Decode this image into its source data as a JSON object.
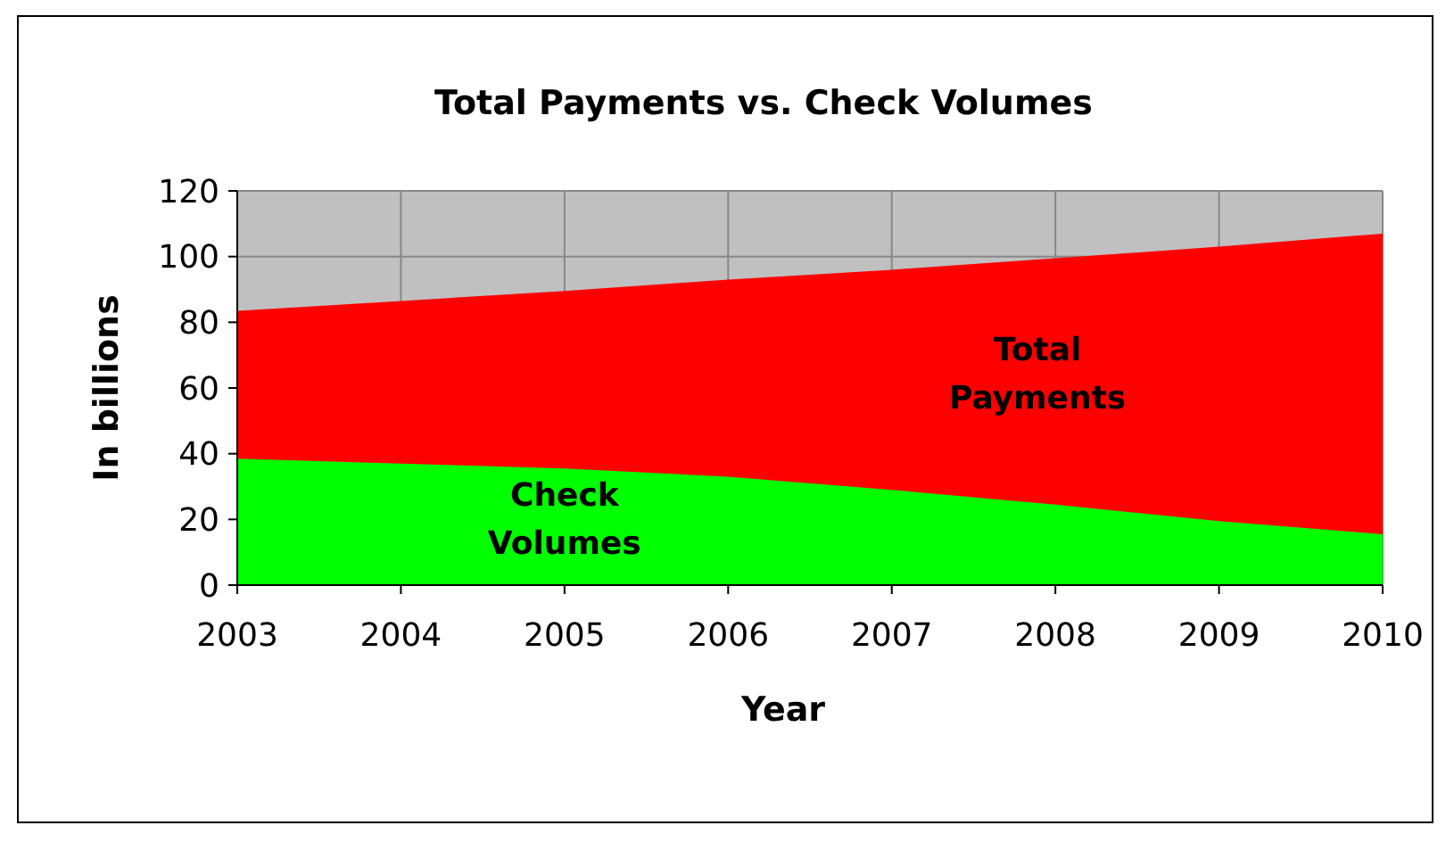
{
  "chart_data": {
    "type": "area",
    "title": "Total Payments vs. Check Volumes",
    "xlabel": "Year",
    "ylabel": "In billions",
    "x": [
      2003,
      2004,
      2005,
      2006,
      2007,
      2008,
      2009,
      2010
    ],
    "xlim": [
      2003,
      2010
    ],
    "xticks": [
      2003,
      2004,
      2005,
      2006,
      2007,
      2008,
      2009,
      2010
    ],
    "ylim": [
      0,
      120
    ],
    "yticks": [
      0,
      20,
      40,
      60,
      80,
      100,
      120
    ],
    "grid": true,
    "series": [
      {
        "name": "Total Payments",
        "color": "#ff0000",
        "values": [
          83.5,
          86.5,
          89.5,
          93,
          96,
          99.5,
          103,
          107
        ]
      },
      {
        "name": "Check Volumes",
        "color": "#00ff00",
        "values": [
          38.5,
          37,
          35.5,
          33,
          29,
          24.5,
          19.5,
          15.5
        ]
      }
    ]
  }
}
